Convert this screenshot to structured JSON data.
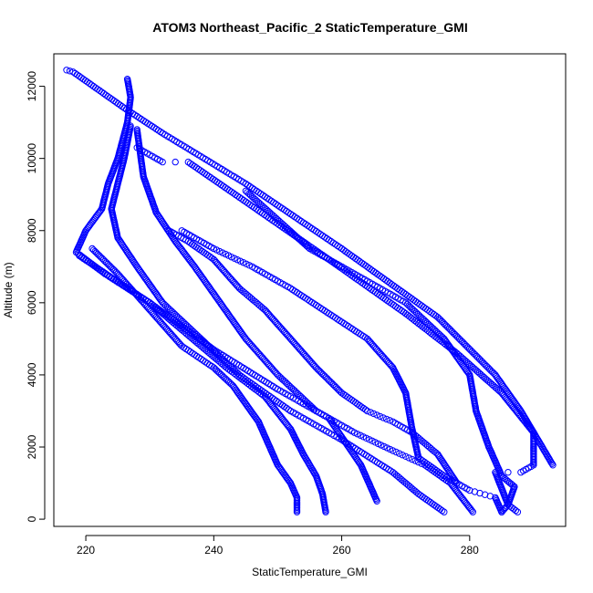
{
  "chart_data": {
    "type": "scatter",
    "title": "ATOM3 Northeast_Pacific_2 StaticTemperature_GMI",
    "xlabel": "StaticTemperature_GMI",
    "ylabel": "Altitude (m)",
    "xlim": [
      215,
      295
    ],
    "ylim": [
      -200,
      12900
    ],
    "xticks": [
      220,
      240,
      260,
      280
    ],
    "yticks": [
      0,
      2000,
      4000,
      6000,
      8000,
      10000,
      12000
    ],
    "grid": false,
    "legend": "none",
    "marker": "open-circle",
    "color": "#0000ff",
    "profiles": [
      {
        "vertices": [
          [
            217,
            12450
          ],
          [
            218,
            12400
          ],
          [
            226,
            11400
          ],
          [
            232,
            10700
          ],
          [
            245,
            9300
          ],
          [
            260,
            7500
          ],
          [
            275,
            5600
          ],
          [
            284,
            4000
          ],
          [
            288,
            3000
          ],
          [
            293,
            1500
          ]
        ]
      },
      {
        "vertices": [
          [
            226.5,
            12200
          ],
          [
            227,
            11700
          ],
          [
            226.5,
            11000
          ],
          [
            225,
            10000
          ],
          [
            223.5,
            9300
          ],
          [
            222.5,
            8600
          ],
          [
            220,
            8000
          ],
          [
            218.5,
            7400
          ],
          [
            223,
            6800
          ],
          [
            230,
            6000
          ],
          [
            240,
            4700
          ],
          [
            250,
            3600
          ],
          [
            258,
            2800
          ],
          [
            263,
            1500
          ],
          [
            265.5,
            500
          ]
        ]
      },
      {
        "vertices": [
          [
            228,
            10300
          ],
          [
            232,
            9900
          ],
          [
            236,
            9900
          ],
          [
            245,
            8800
          ],
          [
            258,
            7200
          ],
          [
            270,
            5700
          ],
          [
            278,
            4600
          ],
          [
            285,
            3500
          ],
          [
            290,
            2400
          ],
          [
            290,
            1500
          ],
          [
            288,
            1300
          ],
          [
            284,
            1300
          ],
          [
            286,
            400
          ],
          [
            287.5,
            200
          ]
        ]
      },
      {
        "vertices": [
          [
            227,
            10900
          ],
          [
            226,
            10000
          ],
          [
            225,
            9300
          ],
          [
            224,
            8600
          ],
          [
            225,
            7800
          ],
          [
            228,
            7000
          ],
          [
            232,
            6000
          ],
          [
            238,
            5000
          ],
          [
            244,
            4000
          ],
          [
            252,
            3000
          ],
          [
            260,
            2200
          ],
          [
            268,
            1300
          ],
          [
            272,
            700
          ],
          [
            276,
            200
          ]
        ]
      },
      {
        "vertices": [
          [
            228,
            10800
          ],
          [
            229,
            9500
          ],
          [
            231,
            8500
          ],
          [
            234,
            7700
          ],
          [
            237,
            7000
          ],
          [
            241,
            6000
          ],
          [
            245,
            5000
          ],
          [
            250,
            4000
          ],
          [
            256,
            3000
          ],
          [
            262,
            2400
          ],
          [
            268,
            1900
          ],
          [
            273,
            1500
          ],
          [
            277,
            1000
          ],
          [
            280.5,
            200
          ]
        ]
      },
      {
        "vertices": [
          [
            233,
            8000
          ],
          [
            236,
            7700
          ],
          [
            240,
            7200
          ],
          [
            244,
            6400
          ],
          [
            248,
            5800
          ],
          [
            252,
            5000
          ],
          [
            256,
            4200
          ],
          [
            260,
            3500
          ],
          [
            264,
            3000
          ],
          [
            268,
            2700
          ],
          [
            271,
            2400
          ],
          [
            275,
            1800
          ],
          [
            278,
            1000
          ]
        ]
      },
      {
        "vertices": [
          [
            235,
            8000
          ],
          [
            240,
            7500
          ],
          [
            246,
            7000
          ],
          [
            252,
            6400
          ],
          [
            258,
            5700
          ],
          [
            264,
            5000
          ],
          [
            268,
            4200
          ],
          [
            270,
            3500
          ],
          [
            271,
            2500
          ],
          [
            272,
            1700
          ],
          [
            276,
            1200
          ],
          [
            280,
            800
          ],
          [
            284,
            600
          ],
          [
            285,
            200
          ]
        ]
      },
      {
        "vertices": [
          [
            245,
            9100
          ],
          [
            250,
            8300
          ],
          [
            255,
            7500
          ],
          [
            262,
            6800
          ],
          [
            270,
            6000
          ],
          [
            276,
            5000
          ],
          [
            280,
            4000
          ],
          [
            281,
            3000
          ],
          [
            283,
            2000
          ],
          [
            285,
            1200
          ],
          [
            287,
            900
          ],
          [
            286,
            400
          ],
          [
            285,
            200
          ]
        ]
      },
      {
        "vertices": [
          [
            221,
            7500
          ],
          [
            225,
            6800
          ],
          [
            230,
            5800
          ],
          [
            235,
            4800
          ],
          [
            240,
            4200
          ],
          [
            243,
            3700
          ],
          [
            245,
            3200
          ],
          [
            247,
            2700
          ],
          [
            248,
            2300
          ],
          [
            250,
            1500
          ],
          [
            252,
            1000
          ],
          [
            253,
            600
          ],
          [
            253,
            200
          ]
        ]
      },
      {
        "vertices": [
          [
            219,
            7300
          ],
          [
            224,
            6700
          ],
          [
            230,
            6000
          ],
          [
            236,
            5100
          ],
          [
            242,
            4200
          ],
          [
            248,
            3400
          ],
          [
            252,
            2500
          ],
          [
            254,
            1800
          ],
          [
            256,
            1200
          ],
          [
            257,
            700
          ],
          [
            257.5,
            200
          ]
        ]
      }
    ]
  }
}
